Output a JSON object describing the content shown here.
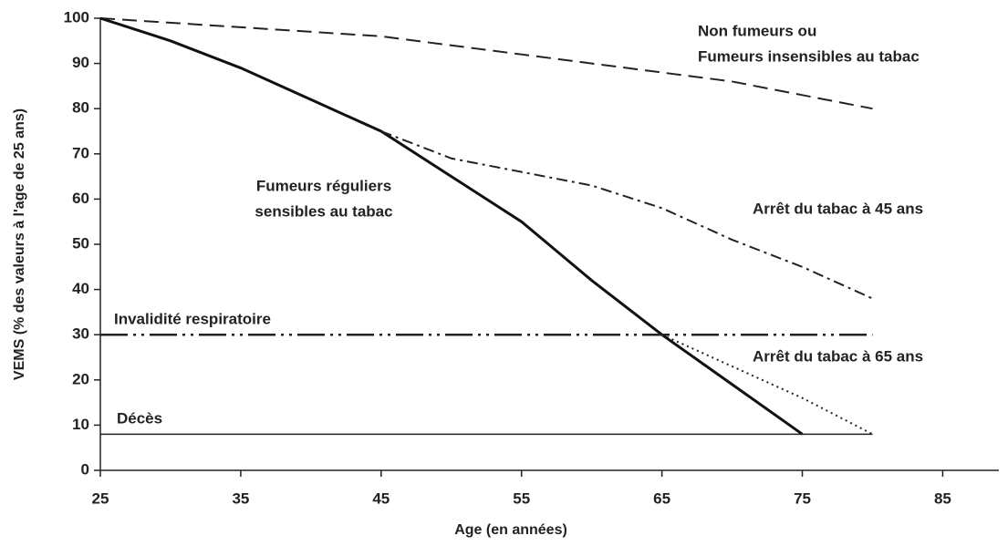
{
  "chart_data": {
    "type": "line",
    "xlabel": "Age (en années)",
    "ylabel": "VEMS (% des valeurs à l'age de 25 ans)",
    "xlim": [
      25,
      89
    ],
    "xticks": [
      25,
      35,
      45,
      55,
      65,
      75,
      85
    ],
    "ylim": [
      0,
      100
    ],
    "yticks": [
      0,
      10,
      20,
      30,
      40,
      50,
      60,
      70,
      80,
      90,
      100
    ],
    "series": [
      {
        "name": [
          "Non fumeurs ou",
          "Fumeurs insensibles au tabac"
        ],
        "color": "#222222",
        "style": "dashed",
        "x": [
          25,
          35,
          45,
          55,
          65,
          70,
          75,
          80
        ],
        "values": [
          100,
          98,
          96,
          92,
          88,
          86,
          83,
          80
        ]
      },
      {
        "name": [
          "Fumeurs réguliers",
          "sensibles au tabac"
        ],
        "color": "#111111",
        "style": "solid-thick",
        "x": [
          25,
          30,
          35,
          40,
          45,
          50,
          55,
          60,
          65,
          70,
          75
        ],
        "values": [
          100,
          95,
          89,
          82,
          75,
          65,
          55,
          42,
          30,
          19,
          8
        ]
      },
      {
        "name": [
          "Arrêt du tabac à 45 ans"
        ],
        "color": "#222222",
        "style": "dashdot",
        "x": [
          45,
          50,
          55,
          60,
          65,
          70,
          75,
          80
        ],
        "values": [
          75,
          69,
          66,
          63,
          58,
          51,
          45,
          38
        ]
      },
      {
        "name": [
          "Arrêt du tabac à 65 ans"
        ],
        "color": "#222222",
        "style": "dotted",
        "x": [
          65,
          70,
          75,
          80
        ],
        "values": [
          30,
          23,
          16,
          8
        ]
      },
      {
        "name": [
          "Invalidité respiratoire"
        ],
        "color": "#222222",
        "style": "dashdotdot",
        "x": [
          25,
          80
        ],
        "values": [
          30,
          30
        ]
      },
      {
        "name": [
          "Décès"
        ],
        "color": "#222222",
        "style": "solid",
        "x": [
          25,
          80
        ],
        "values": [
          8,
          8
        ]
      }
    ]
  }
}
